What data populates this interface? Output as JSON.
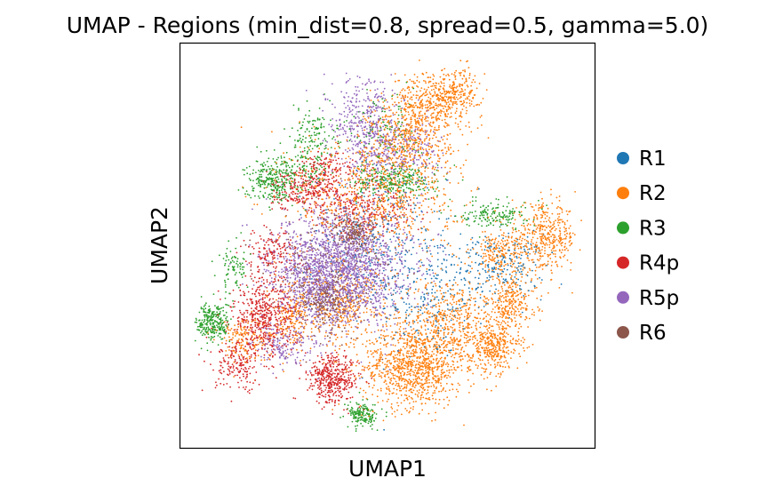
{
  "chart_data": {
    "type": "scatter",
    "title": "UMAP - Regions (min_dist=0.8, spread=0.5, gamma=5.0)",
    "xlabel": "UMAP1",
    "ylabel": "UMAP2",
    "xlim": [
      0,
      100
    ],
    "ylim": [
      0,
      100
    ],
    "grid": false,
    "ticks": false,
    "legend_position": "right",
    "series": [
      {
        "name": "R1",
        "color": "#1f77b4",
        "clusters": [
          {
            "x": 60,
            "y": 38,
            "sx": 7,
            "sy": 8,
            "n": 260
          },
          {
            "x": 78,
            "y": 45,
            "sx": 5,
            "sy": 4,
            "n": 200
          },
          {
            "x": 48,
            "y": 52,
            "sx": 8,
            "sy": 9,
            "n": 260
          }
        ]
      },
      {
        "name": "R2",
        "color": "#ff7f0e",
        "clusters": [
          {
            "x": 56,
            "y": 20,
            "sx": 6,
            "sy": 5,
            "n": 900
          },
          {
            "x": 66,
            "y": 30,
            "sx": 7,
            "sy": 6,
            "n": 650
          },
          {
            "x": 76,
            "y": 25,
            "sx": 3,
            "sy": 3,
            "n": 300
          },
          {
            "x": 80,
            "y": 36,
            "sx": 3,
            "sy": 3,
            "n": 220
          },
          {
            "x": 88,
            "y": 52,
            "sx": 4,
            "sy": 4,
            "n": 420
          },
          {
            "x": 77,
            "y": 48,
            "sx": 3,
            "sy": 3,
            "n": 220
          },
          {
            "x": 55,
            "y": 76,
            "sx": 5,
            "sy": 6,
            "n": 500
          },
          {
            "x": 60,
            "y": 85,
            "sx": 4,
            "sy": 4,
            "n": 320
          },
          {
            "x": 67,
            "y": 88,
            "sx": 3,
            "sy": 3,
            "n": 220
          },
          {
            "x": 47,
            "y": 62,
            "sx": 10,
            "sy": 8,
            "n": 700
          },
          {
            "x": 27,
            "y": 33,
            "sx": 3,
            "sy": 4,
            "n": 200
          },
          {
            "x": 15,
            "y": 27,
            "sx": 3,
            "sy": 3,
            "n": 150
          },
          {
            "x": 40,
            "y": 35,
            "sx": 5,
            "sy": 5,
            "n": 300
          }
        ]
      },
      {
        "name": "R3",
        "color": "#2ca02c",
        "clusters": [
          {
            "x": 8,
            "y": 31,
            "sx": 2,
            "sy": 2.5,
            "n": 260
          },
          {
            "x": 44,
            "y": 8,
            "sx": 1.8,
            "sy": 1.5,
            "n": 160
          },
          {
            "x": 22,
            "y": 66,
            "sx": 3,
            "sy": 2.5,
            "n": 260
          },
          {
            "x": 29,
            "y": 69,
            "sx": 4,
            "sy": 2,
            "n": 120
          },
          {
            "x": 52,
            "y": 66,
            "sx": 5,
            "sy": 2,
            "n": 260
          },
          {
            "x": 76,
            "y": 58,
            "sx": 4,
            "sy": 1.8,
            "n": 160
          },
          {
            "x": 32,
            "y": 78,
            "sx": 3,
            "sy": 3,
            "n": 120
          },
          {
            "x": 50,
            "y": 78,
            "sx": 4,
            "sy": 5,
            "n": 120
          },
          {
            "x": 13,
            "y": 45,
            "sx": 2,
            "sy": 3,
            "n": 80
          }
        ]
      },
      {
        "name": "R4p",
        "color": "#d62728",
        "clusters": [
          {
            "x": 37,
            "y": 17,
            "sx": 3,
            "sy": 3,
            "n": 420
          },
          {
            "x": 20,
            "y": 32,
            "sx": 4,
            "sy": 5,
            "n": 520
          },
          {
            "x": 14,
            "y": 20,
            "sx": 3,
            "sy": 3,
            "n": 160
          },
          {
            "x": 30,
            "y": 64,
            "sx": 4,
            "sy": 2.5,
            "n": 260
          },
          {
            "x": 44,
            "y": 60,
            "sx": 6,
            "sy": 4,
            "n": 300
          },
          {
            "x": 22,
            "y": 48,
            "sx": 3,
            "sy": 3,
            "n": 160
          },
          {
            "x": 36,
            "y": 70,
            "sx": 3,
            "sy": 2,
            "n": 100
          }
        ]
      },
      {
        "name": "R5p",
        "color": "#9467bd",
        "clusters": [
          {
            "x": 40,
            "y": 45,
            "sx": 8,
            "sy": 7,
            "n": 1700
          },
          {
            "x": 32,
            "y": 40,
            "sx": 5,
            "sy": 5,
            "n": 420
          },
          {
            "x": 45,
            "y": 80,
            "sx": 4,
            "sy": 6,
            "n": 420
          },
          {
            "x": 54,
            "y": 73,
            "sx": 5,
            "sy": 4,
            "n": 220
          },
          {
            "x": 25,
            "y": 25,
            "sx": 4,
            "sy": 3,
            "n": 160
          }
        ]
      },
      {
        "name": "R6",
        "color": "#8c564b",
        "clusters": [
          {
            "x": 35,
            "y": 36,
            "sx": 3,
            "sy": 3,
            "n": 220
          },
          {
            "x": 42,
            "y": 53,
            "sx": 2,
            "sy": 2,
            "n": 160
          },
          {
            "x": 37,
            "y": 43,
            "sx": 8,
            "sy": 8,
            "n": 260
          }
        ]
      }
    ]
  }
}
